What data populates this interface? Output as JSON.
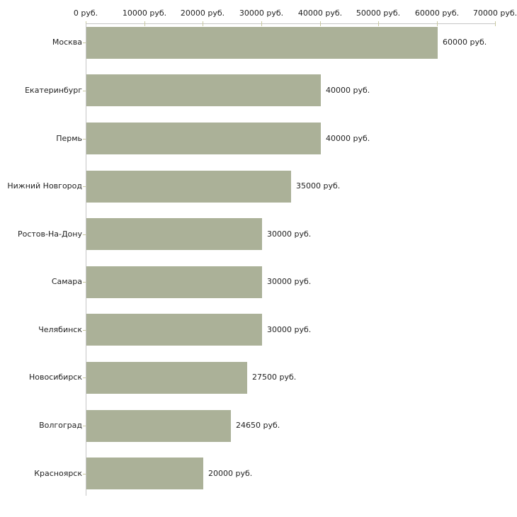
{
  "chart_data": {
    "type": "bar",
    "orientation": "horizontal",
    "title": "",
    "xlabel": "",
    "ylabel": "",
    "categories": [
      "Москва",
      "Екатеринбург",
      "Пермь",
      "Нижний Новгород",
      "Ростов-На-Дону",
      "Самара",
      "Челябинск",
      "Новосибирск",
      "Волгоград",
      "Красноярск"
    ],
    "values": [
      60000,
      40000,
      40000,
      35000,
      30000,
      30000,
      30000,
      27500,
      24650,
      20000
    ],
    "value_labels": [
      "60000 руб.",
      "40000 руб.",
      "40000 руб.",
      "35000 руб.",
      "30000 руб.",
      "30000 руб.",
      "30000 руб.",
      "27500 руб.",
      "24650 руб.",
      "20000 руб."
    ],
    "x_ticks": [
      {
        "value": 0,
        "label": "0 руб."
      },
      {
        "value": 10000,
        "label": "10000 руб."
      },
      {
        "value": 20000,
        "label": "20000 руб."
      },
      {
        "value": 30000,
        "label": "30000 руб."
      },
      {
        "value": 40000,
        "label": "40000 руб."
      },
      {
        "value": 50000,
        "label": "50000 руб."
      },
      {
        "value": 60000,
        "label": "60000 руб."
      },
      {
        "value": 70000,
        "label": "70000 руб."
      }
    ],
    "xlim": [
      0,
      70000
    ],
    "grid": false,
    "legend": "none",
    "colors": {
      "bar": "#abb198",
      "tick": "#c9c9a0",
      "axis": "#c6c6c6",
      "text": "#222222",
      "background": "#ffffff"
    }
  }
}
